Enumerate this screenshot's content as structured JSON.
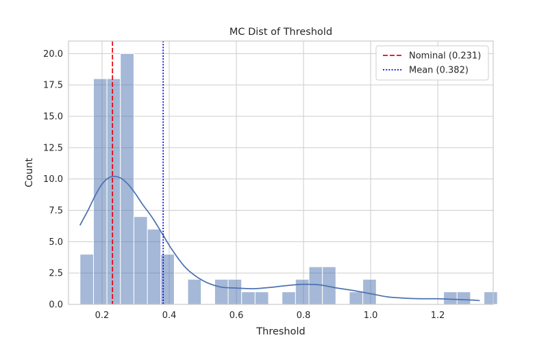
{
  "chart_data": {
    "type": "bar",
    "title": "MC Dist of Threshold",
    "xlabel": "Threshold",
    "ylabel": "Count",
    "xlim": [
      0.1,
      1.365
    ],
    "ylim": [
      0,
      21
    ],
    "xticks": [
      0.2,
      0.4,
      0.6,
      0.8,
      1.0,
      1.2
    ],
    "xtick_labels": [
      "0.2",
      "0.4",
      "0.6",
      "0.8",
      "1.0",
      "1.2"
    ],
    "yticks": [
      0.0,
      2.5,
      5.0,
      7.5,
      10.0,
      12.5,
      15.0,
      17.5,
      20.0
    ],
    "ytick_labels": [
      "0.0",
      "2.5",
      "5.0",
      "7.5",
      "10.0",
      "12.5",
      "15.0",
      "17.5",
      "20.0"
    ],
    "grid": true,
    "bar_color": "#4c72b0",
    "bins": {
      "start": 0.1343,
      "width": 0.04011,
      "counts": [
        4,
        18,
        18,
        20,
        7,
        6,
        4,
        0,
        2,
        0,
        2,
        2,
        1,
        1,
        0,
        1,
        2,
        3,
        3,
        0,
        1,
        2,
        0,
        0,
        0,
        0,
        0,
        1,
        1,
        0,
        1
      ]
    },
    "kde": {
      "color": "#4c72b0",
      "x": [
        0.134,
        0.16,
        0.18,
        0.2,
        0.22,
        0.24,
        0.26,
        0.28,
        0.3,
        0.32,
        0.35,
        0.38,
        0.41,
        0.45,
        0.5,
        0.55,
        0.6,
        0.65,
        0.7,
        0.75,
        0.8,
        0.85,
        0.9,
        0.95,
        1.0,
        1.05,
        1.1,
        1.15,
        1.2,
        1.25,
        1.3,
        1.325
      ],
      "y": [
        6.3,
        7.6,
        8.7,
        9.6,
        10.1,
        10.2,
        10.0,
        9.5,
        8.8,
        8.0,
        6.9,
        5.6,
        4.3,
        2.9,
        1.9,
        1.4,
        1.3,
        1.25,
        1.35,
        1.5,
        1.6,
        1.55,
        1.3,
        1.1,
        0.85,
        0.6,
        0.5,
        0.45,
        0.45,
        0.4,
        0.35,
        0.3
      ]
    },
    "lines": [
      {
        "x": 0.231,
        "color": "#e8000b",
        "style": "dashed",
        "label": "Nominal (0.231)"
      },
      {
        "x": 0.382,
        "color": "#0000dd",
        "style": "dotted",
        "label": "Mean (0.382)"
      }
    ],
    "legend_position": "top-right"
  }
}
